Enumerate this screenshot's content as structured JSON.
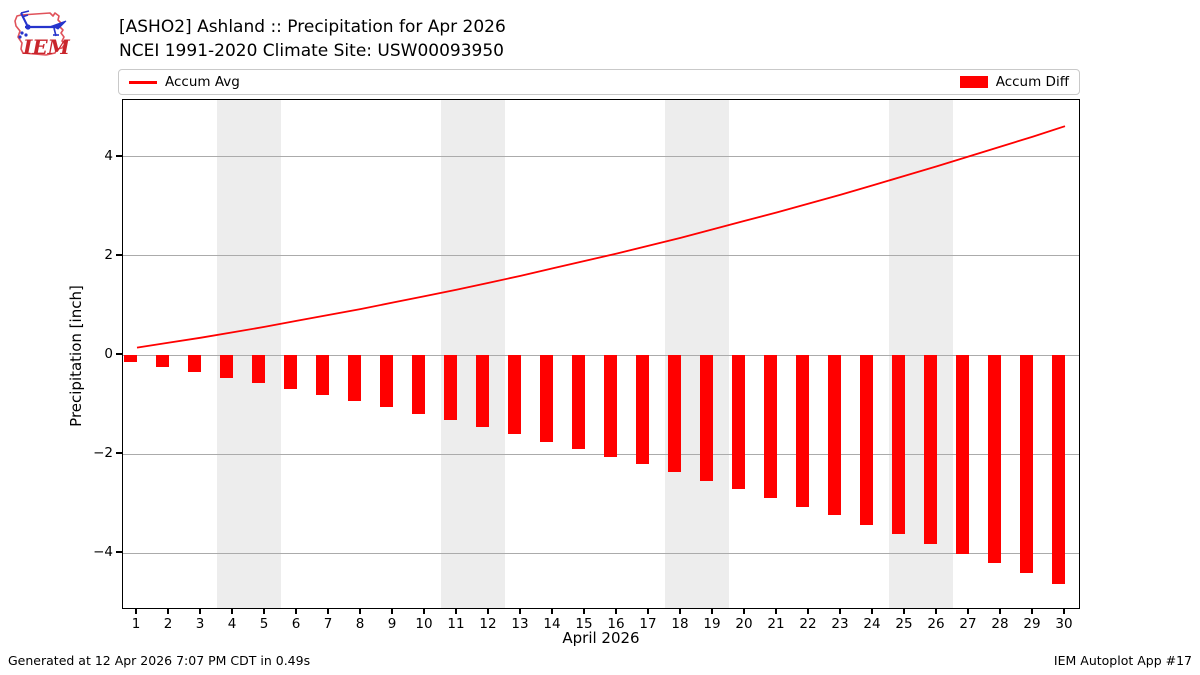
{
  "header": {
    "title_line1": "[ASHO2] Ashland :: Precipitation for Apr 2026",
    "title_line2": "NCEI 1991-2020 Climate Site: USW00093950",
    "logo_text": "IEM"
  },
  "legend": {
    "avg_label": "Accum Avg",
    "diff_label": "Accum Diff"
  },
  "colors": {
    "accent_red": "#ff0000",
    "weekend_band": "#ededed",
    "gridline": "#ababab",
    "axis": "#000000"
  },
  "chart_data": {
    "type": "line+bar",
    "title": "[ASHO2] Ashland :: Precipitation for Apr 2026 / NCEI 1991-2020 Climate Site: USW00093950",
    "xlabel": "April 2026",
    "ylabel": "Precipitation [inch]",
    "x": [
      1,
      2,
      3,
      4,
      5,
      6,
      7,
      8,
      9,
      10,
      11,
      12,
      13,
      14,
      15,
      16,
      17,
      18,
      19,
      20,
      21,
      22,
      23,
      24,
      25,
      26,
      27,
      28,
      29,
      30
    ],
    "series": [
      {
        "name": "Accum Avg",
        "type": "line",
        "values": [
          0.15,
          0.25,
          0.35,
          0.46,
          0.57,
          0.69,
          0.81,
          0.93,
          1.06,
          1.19,
          1.32,
          1.46,
          1.6,
          1.75,
          1.9,
          2.05,
          2.21,
          2.37,
          2.54,
          2.71,
          2.88,
          3.06,
          3.24,
          3.43,
          3.62,
          3.81,
          4.01,
          4.21,
          4.41,
          4.62
        ]
      },
      {
        "name": "Accum Diff",
        "type": "bar",
        "values": [
          -0.15,
          -0.25,
          -0.35,
          -0.46,
          -0.57,
          -0.69,
          -0.81,
          -0.93,
          -1.06,
          -1.19,
          -1.32,
          -1.46,
          -1.6,
          -1.75,
          -1.9,
          -2.05,
          -2.21,
          -2.37,
          -2.54,
          -2.71,
          -2.88,
          -3.06,
          -3.24,
          -3.43,
          -3.62,
          -3.81,
          -4.01,
          -4.21,
          -4.41,
          -4.62
        ]
      }
    ],
    "ylim": [
      -5.15,
      5.15
    ],
    "yticks": [
      -4,
      -2,
      0,
      2,
      4
    ],
    "xticks": [
      1,
      2,
      3,
      4,
      5,
      6,
      7,
      8,
      9,
      10,
      11,
      12,
      13,
      14,
      15,
      16,
      17,
      18,
      19,
      20,
      21,
      22,
      23,
      24,
      25,
      26,
      27,
      28,
      29,
      30
    ],
    "weekend_bands": [
      [
        3.5,
        5.5
      ],
      [
        10.5,
        12.5
      ],
      [
        17.5,
        19.5
      ],
      [
        24.5,
        26.5
      ]
    ],
    "grid": "horizontal",
    "legend_position": "top-full-width"
  },
  "footer": {
    "left": "Generated at 12 Apr 2026 7:07 PM CDT in 0.49s",
    "right": "IEM Autoplot App #17"
  }
}
